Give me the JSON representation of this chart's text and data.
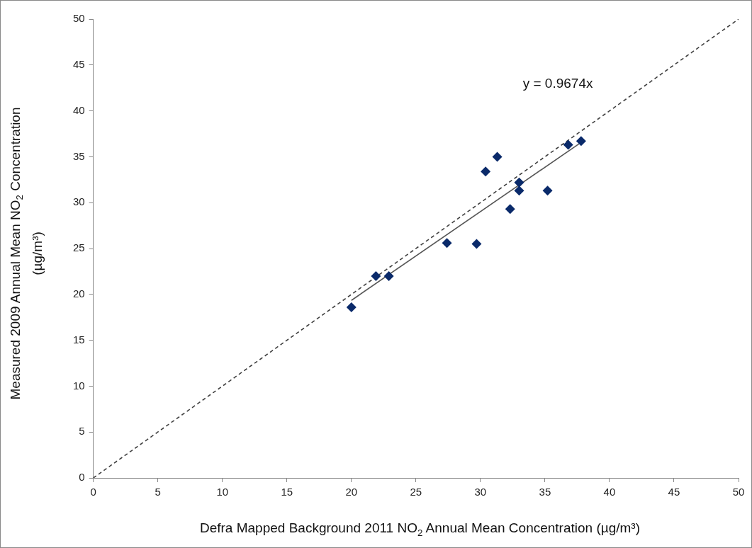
{
  "chart_data": {
    "type": "scatter",
    "xlabel": "Defra Mapped Background 2011 NO$_{2}$ Annual Mean Concentration (µg/m³)",
    "ylabel": "Measured 2009 Annual Mean NO$_{2}$ Concentration (µg/m³)",
    "series": [
      {
        "color": "#0a2a6a",
        "marker": "diamond",
        "x": [
          20,
          21.9,
          22.9,
          27.4,
          29.7,
          30.4,
          31.3,
          32.3,
          33,
          33,
          35.2,
          36.8,
          37.8
        ],
        "values": [
          18.6,
          22,
          22,
          25.6,
          25.5,
          33.4,
          35,
          29.3,
          32.2,
          31.3,
          31.3,
          36.3,
          36.7
        ]
      },
      {
        "type": "line",
        "color": "#555555",
        "line_style": "solid",
        "marker": "none",
        "x": [
          20,
          37.8
        ],
        "values": [
          19.35,
          36.57
        ]
      },
      {
        "type": "line",
        "color": "#404040",
        "line_style": "dashed",
        "marker": "none",
        "x": [
          0,
          50
        ],
        "values": [
          0,
          50
        ]
      }
    ],
    "annotations": [
      "y = 0.9674x"
    ],
    "xlim": [
      0,
      50
    ],
    "xticks": [
      0,
      5,
      10,
      15,
      20,
      25,
      30,
      35,
      40,
      45,
      50
    ],
    "ylim": [
      0,
      50
    ],
    "yticks": [
      0,
      5,
      10,
      15,
      20,
      25,
      30,
      35,
      40,
      45,
      50
    ],
    "grid": false,
    "legend": false
  }
}
